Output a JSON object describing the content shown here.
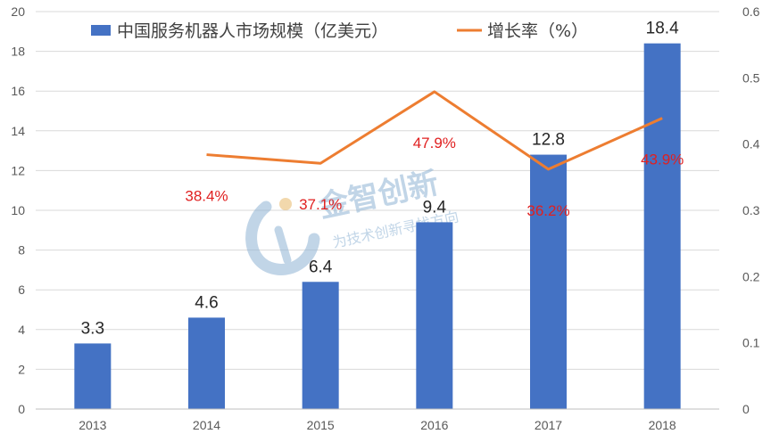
{
  "chart_data": {
    "type": "bar",
    "categories": [
      "2013",
      "2014",
      "2015",
      "2016",
      "2017",
      "2018"
    ],
    "series": [
      {
        "name": "中国服务机器人市场规模（亿美元）",
        "type": "bar",
        "axis": "left",
        "color": "#4472c4",
        "values": [
          3.3,
          4.6,
          6.4,
          9.4,
          12.8,
          18.4
        ],
        "labels": [
          "3.3",
          "4.6",
          "6.4",
          "9.4",
          "12.8",
          "18.4"
        ]
      },
      {
        "name": "增长率（%）",
        "type": "line",
        "axis": "right",
        "color": "#ed7d31",
        "values": [
          null,
          0.384,
          0.371,
          0.479,
          0.362,
          0.439
        ],
        "labels": [
          "",
          "38.4%",
          "37.1%",
          "47.9%",
          "36.2%",
          "43.9%"
        ]
      }
    ],
    "ylim_left": [
      0,
      20
    ],
    "yticks_left": [
      "0",
      "2",
      "4",
      "6",
      "8",
      "10",
      "12",
      "14",
      "16",
      "18",
      "20"
    ],
    "ylim_right": [
      0,
      0.6
    ],
    "yticks_right": [
      "0",
      "0.1",
      "0.2",
      "0.3",
      "0.4",
      "0.5",
      "0.6"
    ],
    "grid": true,
    "legend_position": "top"
  },
  "watermark": {
    "title": "金智创新",
    "subtitle": "为技术创新寻找方向"
  }
}
